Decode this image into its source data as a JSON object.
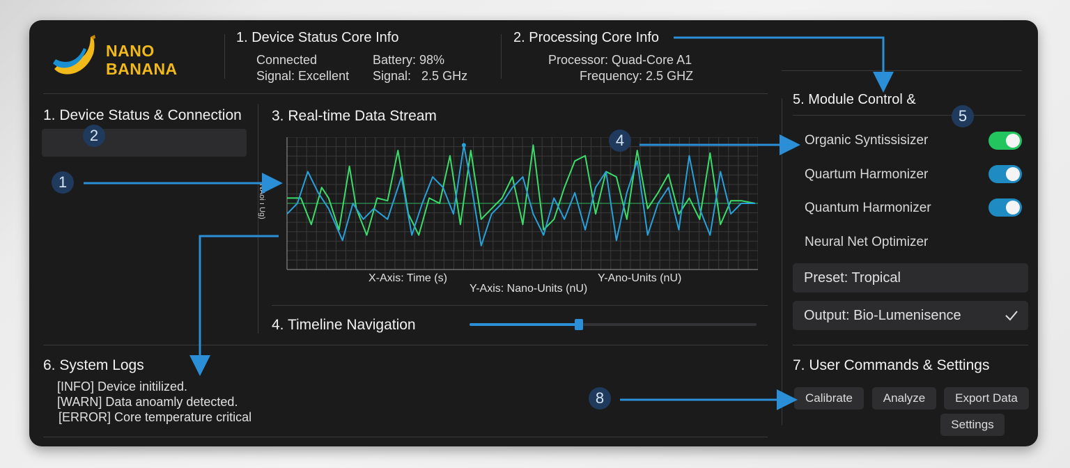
{
  "brand": {
    "name_line1": "NANO",
    "name_line2": "BANANA"
  },
  "device_status": {
    "title": "1. Device Status Core Info",
    "connected": "Connected",
    "battery": "Battery: 98%",
    "signal_quality": "Signal: Excellent",
    "signal_freq": "Signal:   2.5 GHz"
  },
  "processing": {
    "title": "2. Processing Core Info",
    "processor": "Processor: Quad-Core A1",
    "frequency": "Frequency: 2.5 GHZ"
  },
  "connection": {
    "title": "1. Device Status & Connection"
  },
  "stream": {
    "title": "3. Real-time Data Stream",
    "y_axis_rotated": "NAoi ı Ug)",
    "x_axis_label": "X-Axis: Time (s)",
    "y_axis_label": "Y-Axis: Nano-Units (nU)",
    "y_units_label": "Y-Ano-Units (nU)"
  },
  "chart_data": {
    "type": "line",
    "title": "",
    "xlabel": "X-Axis: Time (s)",
    "ylabel": "Y-Axis: Nano-Units (nU)",
    "x": [
      0,
      1,
      2,
      3,
      4,
      5,
      6,
      7,
      8,
      9,
      10,
      11,
      12,
      13,
      14,
      15,
      16,
      17,
      18,
      19,
      20,
      21,
      22,
      23,
      24,
      25,
      26,
      27,
      28,
      29,
      30,
      31,
      32,
      33,
      34,
      35,
      36,
      37,
      38,
      39,
      40,
      41,
      42,
      43,
      44,
      45,
      46,
      47,
      48,
      49,
      50,
      51,
      52,
      53,
      54,
      55,
      56,
      57,
      58,
      59,
      60,
      61,
      62,
      63,
      64,
      65,
      66,
      67,
      68,
      69,
      70,
      71,
      72,
      73,
      74,
      75,
      76,
      77,
      78,
      79,
      80,
      81,
      82,
      83,
      84,
      85,
      86,
      87,
      88,
      89,
      90,
      91,
      92,
      93,
      94,
      95,
      96,
      97,
      98,
      99,
      100,
      101,
      102,
      103,
      104,
      105,
      106,
      107,
      108,
      109,
      110,
      111,
      112,
      113,
      114,
      115,
      116,
      117,
      118,
      119,
      120,
      121,
      122,
      123,
      124,
      125,
      126,
      127,
      128,
      129,
      130,
      131,
      132,
      133,
      134,
      135,
      136,
      137,
      138,
      139,
      140,
      141,
      142,
      143,
      144,
      145,
      146,
      147,
      148,
      149,
      150,
      151,
      152,
      153,
      154,
      155,
      156,
      157,
      158,
      159,
      160,
      161,
      162,
      163,
      164,
      165,
      166,
      167,
      168,
      169,
      170,
      171,
      172,
      173,
      174,
      175,
      176,
      177,
      178,
      179,
      180,
      181,
      182,
      183,
      184,
      185,
      186,
      187,
      188,
      189,
      190,
      191,
      192,
      193,
      194,
      195,
      196,
      197,
      198,
      199,
      200,
      201,
      202,
      203,
      204,
      205,
      206,
      207,
      208,
      209,
      210,
      211,
      212,
      213,
      214,
      215,
      216,
      217,
      218,
      219,
      220,
      221,
      222,
      223,
      224,
      225,
      226,
      227,
      228,
      229,
      230,
      231,
      232,
      233,
      234,
      235,
      236,
      237,
      238,
      239,
      240,
      241,
      242,
      243,
      244,
      245,
      246,
      247,
      248,
      249,
      250,
      251,
      252,
      253,
      254,
      255,
      256,
      257,
      258,
      259,
      260,
      261,
      262,
      263,
      264,
      265,
      266,
      267,
      268,
      269,
      270,
      271,
      272,
      273,
      274,
      275,
      276,
      277,
      278,
      279,
      280,
      281,
      282,
      283,
      284,
      285,
      286,
      287,
      288,
      289,
      290,
      291,
      292,
      293,
      294,
      295,
      296,
      297,
      298,
      299,
      300,
      301,
      302,
      303,
      304,
      305,
      306,
      307,
      308,
      309,
      310,
      311,
      312,
      313,
      314,
      315,
      316,
      317,
      318,
      319,
      320,
      321,
      322,
      323,
      324,
      325,
      326,
      327,
      328,
      329,
      330,
      331,
      332,
      333,
      334,
      335,
      336,
      337,
      338,
      339,
      340,
      341,
      342,
      343,
      344,
      345,
      346,
      347,
      348,
      349,
      350,
      351,
      352,
      353,
      354,
      355,
      356,
      357,
      358,
      359,
      360,
      361,
      362,
      363,
      364,
      365,
      366,
      367,
      368,
      369,
      370,
      371,
      372,
      373,
      374,
      375,
      376,
      377,
      378,
      379,
      380,
      381,
      382,
      383,
      384,
      385,
      386,
      387,
      388,
      389,
      390,
      391,
      392,
      393,
      394,
      395,
      396,
      397,
      398,
      399,
      400,
      401,
      402,
      403,
      404,
      405,
      406,
      407,
      408,
      409,
      410,
      411,
      412,
      413,
      414,
      415,
      416,
      417,
      418,
      419,
      420,
      421,
      422,
      423,
      424,
      425,
      426,
      427,
      428,
      429,
      430,
      431,
      432,
      433,
      434,
      435,
      436,
      437,
      438,
      439,
      440,
      441,
      442,
      443,
      444,
      445,
      446,
      447,
      448,
      449,
      450,
      451,
      452,
      453,
      454,
      455,
      456,
      457,
      458,
      459,
      460,
      461,
      462,
      463,
      464,
      465,
      466,
      467,
      468,
      469,
      470,
      471,
      472,
      473,
      474,
      475,
      476,
      477,
      478,
      479,
      480,
      481,
      482,
      483,
      484,
      485,
      486,
      487,
      488,
      489,
      490,
      491,
      492,
      493,
      494,
      495,
      496,
      497,
      498,
      499,
      500,
      501,
      502,
      503,
      504,
      505,
      506,
      507,
      508,
      509,
      510,
      511,
      512,
      513,
      514,
      515,
      516,
      517,
      518,
      519,
      520,
      521,
      522,
      523,
      524,
      525,
      526,
      527,
      528,
      529,
      530,
      531,
      532,
      533,
      534,
      535,
      536,
      537,
      538,
      539,
      540,
      541,
      542,
      543,
      544,
      545,
      546,
      547,
      548,
      549,
      550,
      551,
      552,
      553,
      554,
      555,
      556,
      557,
      558,
      559,
      560,
      561,
      562,
      563,
      564,
      565,
      566,
      567,
      568,
      569,
      570,
      571,
      572,
      573,
      574,
      575,
      576,
      577,
      578,
      579,
      580,
      581,
      582,
      583,
      584,
      585,
      586,
      587,
      588,
      589,
      590,
      591,
      592,
      593,
      594,
      595,
      596,
      597,
      598,
      599,
      600,
      601,
      602,
      603,
      604,
      605,
      606,
      607,
      608,
      609,
      610,
      611,
      612,
      613,
      614,
      615,
      616,
      617,
      618,
      619,
      620,
      621,
      622,
      623,
      624,
      625,
      626,
      627,
      628,
      629,
      630,
      631,
      632,
      633,
      634,
      635,
      636,
      637,
      638,
      639,
      640,
      641,
      642,
      643,
      644,
      645,
      646,
      647,
      648,
      649,
      650,
      651,
      652,
      653,
      654,
      655,
      656,
      657,
      658,
      659,
      660,
      661,
      662,
      663,
      664,
      665,
      666,
      667,
      668,
      669,
      670,
      671,
      672,
      673,
      674,
      675
    ],
    "series": [
      {
        "name": "green",
        "color": "#3ddc6a",
        "points": [
          [
            0,
            0.1
          ],
          [
            20,
            0.1
          ],
          [
            35,
            -0.4
          ],
          [
            50,
            0.3
          ],
          [
            60,
            0.1
          ],
          [
            75,
            -0.5
          ],
          [
            90,
            0.7
          ],
          [
            100,
            -0.1
          ],
          [
            115,
            -0.6
          ],
          [
            130,
            0.1
          ],
          [
            145,
            0.05
          ],
          [
            160,
            1.0
          ],
          [
            175,
            -0.2
          ],
          [
            190,
            -0.6
          ],
          [
            205,
            0.1
          ],
          [
            220,
            0.0
          ],
          [
            235,
            0.9
          ],
          [
            250,
            -0.4
          ],
          [
            265,
            1.0
          ],
          [
            280,
            -0.3
          ],
          [
            295,
            -0.1
          ],
          [
            310,
            0.1
          ],
          [
            325,
            0.5
          ],
          [
            340,
            -0.4
          ],
          [
            355,
            1.1
          ],
          [
            370,
            -0.5
          ],
          [
            385,
            -0.3
          ],
          [
            400,
            0.3
          ],
          [
            415,
            0.8
          ],
          [
            430,
            0.9
          ],
          [
            445,
            -0.2
          ],
          [
            460,
            0.6
          ],
          [
            475,
            0.5
          ],
          [
            490,
            -0.3
          ],
          [
            505,
            1.0
          ],
          [
            520,
            -0.1
          ],
          [
            535,
            0.2
          ],
          [
            550,
            0.55
          ],
          [
            565,
            -0.2
          ],
          [
            580,
            0.1
          ],
          [
            595,
            -0.3
          ],
          [
            610,
            0.95
          ],
          [
            625,
            -0.4
          ],
          [
            640,
            0.05
          ],
          [
            655,
            0.05
          ],
          [
            675,
            0.0
          ]
        ]
      },
      {
        "name": "blue",
        "color": "#2aa0d8",
        "points": [
          [
            0,
            -0.2
          ],
          [
            15,
            0.0
          ],
          [
            30,
            0.6
          ],
          [
            45,
            0.2
          ],
          [
            60,
            -0.1
          ],
          [
            80,
            -0.7
          ],
          [
            95,
            0.0
          ],
          [
            110,
            -0.3
          ],
          [
            125,
            -0.1
          ],
          [
            145,
            -0.3
          ],
          [
            165,
            0.5
          ],
          [
            180,
            -0.6
          ],
          [
            195,
            0.0
          ],
          [
            210,
            0.5
          ],
          [
            225,
            0.3
          ],
          [
            240,
            -0.2
          ],
          [
            255,
            1.1
          ],
          [
            265,
            0.4
          ],
          [
            280,
            -0.8
          ],
          [
            295,
            -0.2
          ],
          [
            310,
            0.0
          ],
          [
            325,
            0.3
          ],
          [
            340,
            0.5
          ],
          [
            355,
            -0.2
          ],
          [
            370,
            -0.6
          ],
          [
            385,
            0.1
          ],
          [
            400,
            -0.3
          ],
          [
            415,
            0.2
          ],
          [
            430,
            -0.5
          ],
          [
            445,
            0.3
          ],
          [
            460,
            0.6
          ],
          [
            475,
            -0.7
          ],
          [
            490,
            0.2
          ],
          [
            505,
            0.8
          ],
          [
            520,
            -0.6
          ],
          [
            535,
            0.0
          ],
          [
            550,
            0.3
          ],
          [
            565,
            -0.5
          ],
          [
            580,
            0.9
          ],
          [
            595,
            -0.1
          ],
          [
            610,
            -0.6
          ],
          [
            625,
            0.6
          ],
          [
            640,
            -0.2
          ],
          [
            655,
            0.0
          ],
          [
            675,
            0.0
          ]
        ]
      }
    ],
    "highlight_point": {
      "series": "blue",
      "x": 255,
      "y": 1.1
    }
  },
  "timeline": {
    "title": "4. Timeline Navigation",
    "position": 0.38
  },
  "modules": {
    "title": "5. Module Control &",
    "items": [
      {
        "label": "Organic Syntissisizer",
        "toggle": "on",
        "color": "#22c55e"
      },
      {
        "label": "Quartum Harmonizer",
        "toggle": "on",
        "color": "#1e8bc3"
      },
      {
        "label": "Quantum Harmonizer",
        "toggle": "on",
        "color": "#1e8bc3"
      },
      {
        "label": "Neural Net Optimizer"
      }
    ],
    "preset": "Preset: Tropical",
    "output": "Output: Bio-Lumenisence"
  },
  "logs": {
    "title": "6. System Logs",
    "lines": [
      "[INFO] Device initilized.",
      "[WARN] Data anoamly detected.",
      "[ERROR] Core temperature critical"
    ]
  },
  "commands": {
    "title": "7. User Commands & Settings",
    "calibrate": "Calibrate",
    "analyze": "Analyze",
    "export": "Export Data",
    "settings": "Settings"
  },
  "badges": {
    "b1": "1",
    "b2": "2",
    "b4": "4",
    "b5": "5",
    "b8": "8"
  },
  "colors": {
    "accent": "#2a8fd6",
    "panel": "#1b1b1c",
    "brand": "#f2b91a"
  }
}
